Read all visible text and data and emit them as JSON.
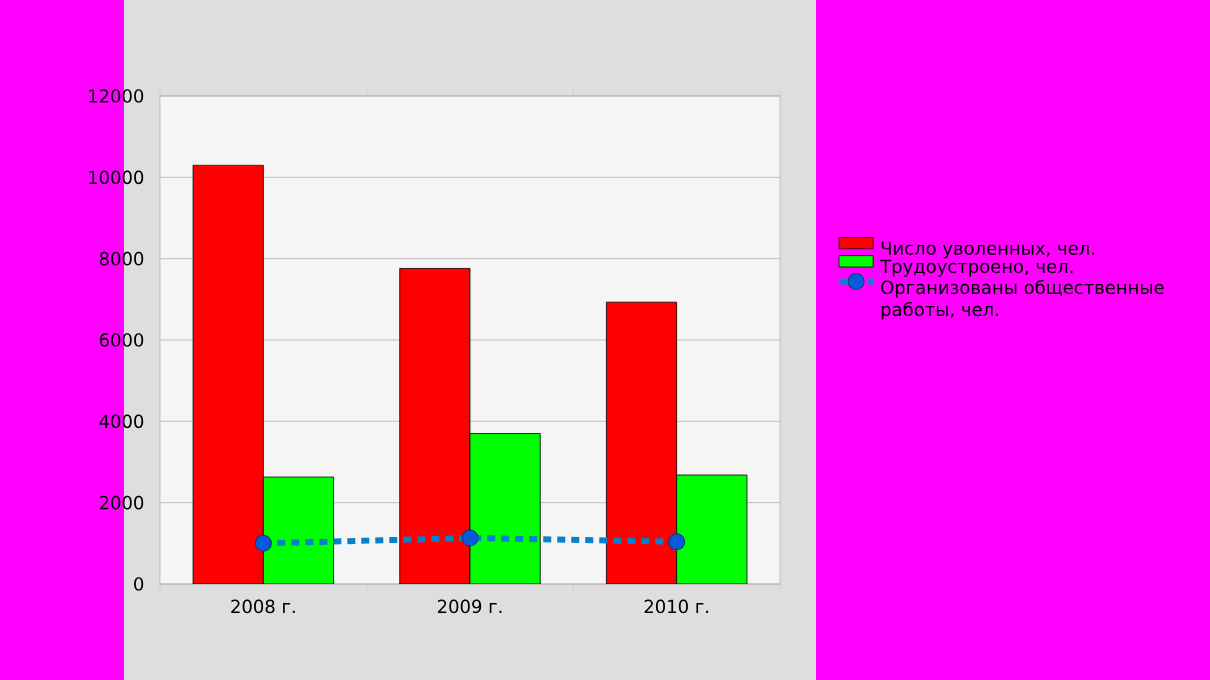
{
  "chart_data": {
    "type": "bar",
    "categories": [
      "2008 г.",
      "2009 г.",
      "2010 г."
    ],
    "series": [
      {
        "name": "Число уволенных, чел.",
        "color": "#ff0000",
        "values": [
          10300,
          7760,
          6930
        ]
      },
      {
        "name": "Трудоустроено, чел.",
        "color": "#00ff00",
        "values": [
          2630,
          3700,
          2680
        ]
      },
      {
        "name": "Организованы общественные работы, чел.",
        "color": "#0a7fd0",
        "type": "line",
        "values": [
          1000,
          1130,
          1040
        ],
        "marker": "circle",
        "line_style": "dotted"
      }
    ],
    "ylim": [
      0,
      12000
    ],
    "yticks": [
      0,
      2000,
      4000,
      6000,
      8000,
      10000,
      12000
    ],
    "grid": "y",
    "legend": "right"
  }
}
